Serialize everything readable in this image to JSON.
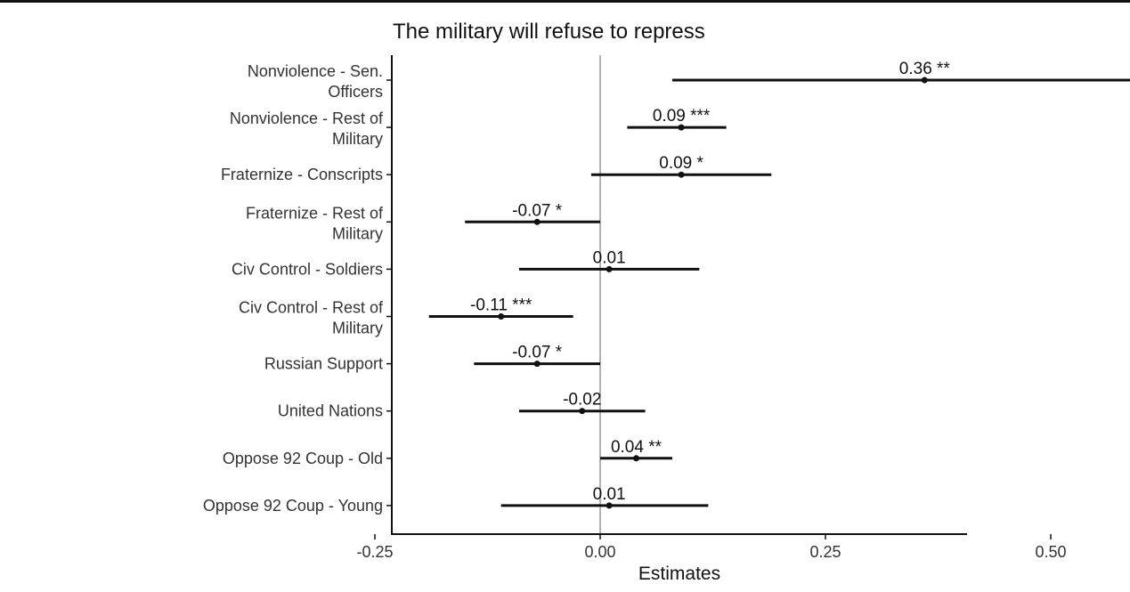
{
  "chart_data": {
    "type": "forest",
    "title": "The military will refuse to repress",
    "xlabel": "Estimates",
    "ylabel": "",
    "xlim": [
      -0.45,
      0.8
    ],
    "xticks": [
      "-0.25",
      "0.00",
      "0.25",
      "0.50",
      "0.75"
    ],
    "xtick_values": [
      -0.25,
      0,
      0.25,
      0.5,
      0.75
    ],
    "reference_line": 0,
    "grid": false,
    "terms": [
      {
        "label": [
          "Nonviolence - Sen.",
          "Officers"
        ],
        "estimate": 0.36,
        "ci_low": 0.08,
        "ci_high": 0.64,
        "annotation": "0.36 **"
      },
      {
        "label": [
          "Nonviolence - Rest of",
          "Military"
        ],
        "estimate": 0.09,
        "ci_low": 0.03,
        "ci_high": 0.14,
        "annotation": "0.09 ***"
      },
      {
        "label": [
          "Fraternize - Conscripts"
        ],
        "estimate": 0.09,
        "ci_low": -0.01,
        "ci_high": 0.19,
        "annotation": "0.09 *"
      },
      {
        "label": [
          "Fraternize - Rest of",
          "Military"
        ],
        "estimate": -0.07,
        "ci_low": -0.15,
        "ci_high": 0.0,
        "annotation": "-0.07 *"
      },
      {
        "label": [
          "Civ Control - Soldiers"
        ],
        "estimate": 0.01,
        "ci_low": -0.09,
        "ci_high": 0.11,
        "annotation": "0.01"
      },
      {
        "label": [
          "Civ Control - Rest of",
          "Military"
        ],
        "estimate": -0.11,
        "ci_low": -0.19,
        "ci_high": -0.03,
        "annotation": "-0.11 ***"
      },
      {
        "label": [
          "Russian Support"
        ],
        "estimate": -0.07,
        "ci_low": -0.14,
        "ci_high": 0.0,
        "annotation": "-0.07 *"
      },
      {
        "label": [
          "United Nations"
        ],
        "estimate": -0.02,
        "ci_low": -0.09,
        "ci_high": 0.05,
        "annotation": "-0.02"
      },
      {
        "label": [
          "Oppose 92 Coup - Old"
        ],
        "estimate": 0.04,
        "ci_low": 0.0,
        "ci_high": 0.08,
        "annotation": "0.04 **"
      },
      {
        "label": [
          "Oppose 92 Coup - Young"
        ],
        "estimate": 0.01,
        "ci_low": -0.11,
        "ci_high": 0.12,
        "annotation": "0.01"
      }
    ],
    "colors": {
      "line": "#111111",
      "reference": "#999999",
      "axis": "#111111",
      "text": "#333333"
    }
  }
}
